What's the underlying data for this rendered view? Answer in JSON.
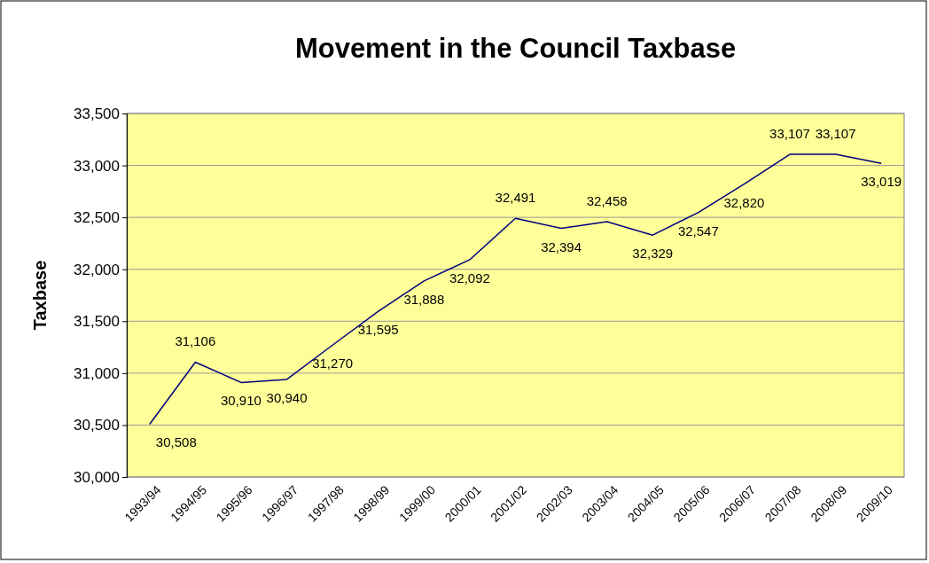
{
  "chart_data": {
    "type": "line",
    "title": "Movement in the Council Taxbase",
    "ylabel": "Taxbase",
    "categories": [
      "1993/94",
      "1994/95",
      "1995/96",
      "1996/97",
      "1997/98",
      "1998/99",
      "1999/00",
      "2000/01",
      "2001/02",
      "2002/03",
      "2003/04",
      "2004/05",
      "2005/06",
      "2006/07",
      "2007/08",
      "2008/09",
      "2009/10"
    ],
    "series": [
      {
        "color": "#000080",
        "values": [
          30508,
          31106,
          30910,
          30940,
          31270,
          31595,
          31888,
          32092,
          32491,
          32394,
          32458,
          32329,
          32547,
          32820,
          33107,
          33107,
          33019
        ],
        "value_labels": [
          "30,508",
          "31,106",
          "30,910",
          "30,940",
          "31,270",
          "31,595",
          "31,888",
          "32,092",
          "32,491",
          "32,394",
          "32,458",
          "32,329",
          "32,547",
          "32,820",
          "33,107",
          "33,107",
          "33,019"
        ]
      }
    ],
    "ylim": [
      30000,
      33500
    ],
    "yticks": [
      {
        "value": 30000,
        "label": "30,000"
      },
      {
        "value": 30500,
        "label": "30,500"
      },
      {
        "value": 31000,
        "label": "31,000"
      },
      {
        "value": 31500,
        "label": "31,500"
      },
      {
        "value": 32000,
        "label": "32,000"
      },
      {
        "value": 32500,
        "label": "32,500"
      },
      {
        "value": 33000,
        "label": "33,000"
      },
      {
        "value": 33500,
        "label": "33,500"
      }
    ],
    "grid": "y",
    "marker": "none",
    "line_style": "solid"
  }
}
